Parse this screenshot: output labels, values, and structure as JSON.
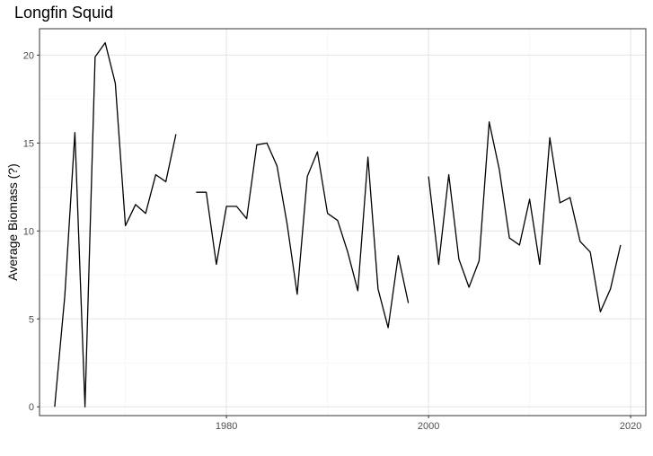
{
  "chart_data": {
    "type": "line",
    "title": "Longfin Squid",
    "xlabel": "",
    "ylabel": "Average Biomass (?)",
    "xlim": [
      1961.5,
      2021.5
    ],
    "ylim": [
      -0.5,
      21.5
    ],
    "x_ticks": [
      1980,
      2000,
      2020
    ],
    "y_ticks": [
      0,
      5,
      10,
      15,
      20
    ],
    "grid": true,
    "line_color": "#000000",
    "segments": [
      {
        "x": [
          1963,
          1964,
          1965,
          1966,
          1967,
          1968,
          1969,
          1970,
          1971,
          1972,
          1973,
          1974,
          1975
        ],
        "y": [
          0.0,
          6.3,
          15.6,
          0.0,
          19.9,
          20.7,
          18.4,
          10.3,
          11.5,
          11.0,
          13.2,
          12.8,
          15.5
        ]
      },
      {
        "x": [
          1977,
          1978,
          1979,
          1980,
          1981,
          1982,
          1983,
          1984,
          1985,
          1986,
          1987,
          1988,
          1989,
          1990,
          1991,
          1992,
          1993,
          1994,
          1995,
          1996,
          1997,
          1998
        ],
        "y": [
          12.2,
          12.2,
          8.1,
          11.4,
          11.4,
          10.7,
          14.9,
          15.0,
          13.7,
          10.4,
          6.4,
          13.1,
          14.5,
          11.0,
          10.6,
          8.8,
          6.6,
          14.2,
          6.7,
          4.5,
          8.6,
          5.9
        ]
      },
      {
        "x": [
          2000,
          2001,
          2002,
          2003,
          2004,
          2005,
          2006,
          2007,
          2008,
          2009,
          2010,
          2011,
          2012,
          2013,
          2014,
          2015,
          2016,
          2017,
          2018,
          2019
        ],
        "y": [
          13.1,
          8.1,
          13.2,
          8.4,
          6.8,
          8.3,
          16.2,
          13.5,
          9.6,
          9.2,
          11.8,
          8.1,
          15.3,
          11.6,
          11.9,
          9.4,
          8.8,
          5.4,
          6.7,
          9.2
        ]
      }
    ]
  }
}
